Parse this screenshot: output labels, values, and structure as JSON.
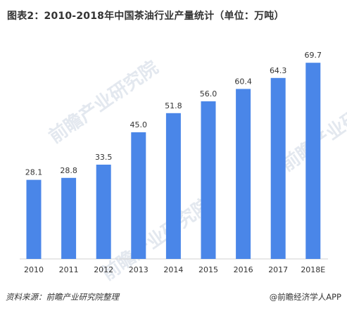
{
  "chart_data": {
    "type": "bar",
    "title": "图表2：2010-2018年中国茶油行业产量统计（单位：万吨）",
    "categories": [
      "2010",
      "2011",
      "2012",
      "2013",
      "2014",
      "2015",
      "2016",
      "2017",
      "2018E"
    ],
    "values": [
      28.1,
      28.8,
      33.5,
      45.0,
      51.8,
      56.0,
      60.4,
      64.3,
      69.7
    ],
    "value_labels": [
      "28.1",
      "28.8",
      "33.5",
      "45.0",
      "51.8",
      "56.0",
      "60.4",
      "64.3",
      "69.7"
    ],
    "xlabel": "",
    "ylabel": "",
    "ylim": [
      0,
      74
    ],
    "grid": false,
    "bar_color": "#4a86e8"
  },
  "footer": {
    "source": "资料来源：前瞻产业研究院整理",
    "brand": "@前瞻经济学人APP"
  },
  "watermarks": [
    "前瞻产业研究院",
    "前瞻产业研究院",
    "前瞻产业研究院"
  ]
}
